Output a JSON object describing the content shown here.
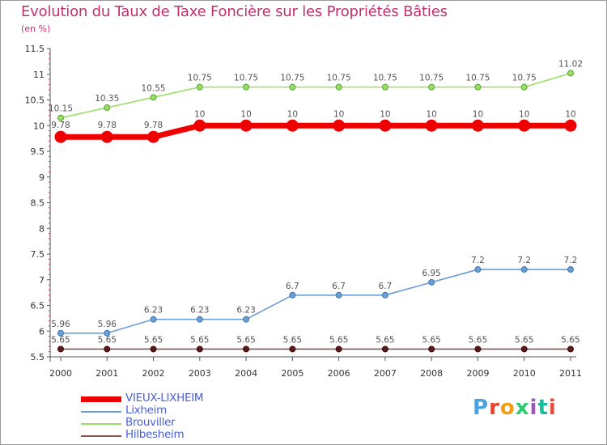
{
  "title": "Evolution du Taux de Taxe Foncière sur les Propriétés Bâties",
  "unit": "(en %)",
  "chart_data": {
    "type": "line",
    "title": "Evolution du Taux de Taxe Foncière sur les Propriétés Bâties",
    "ylabel": "(en %)",
    "xlabel": "",
    "ylim": [
      5.5,
      11.5
    ],
    "yticks": [
      5.5,
      6,
      6.5,
      7,
      7.5,
      8,
      8.5,
      9,
      9.5,
      10,
      10.5,
      11,
      11.5
    ],
    "ytick_labels": [
      "5.5",
      "6",
      "6.5",
      "7",
      "7.5",
      "8",
      "8.5",
      "9",
      "9.5",
      "10",
      "10.5",
      "11",
      "11.5"
    ],
    "x": [
      "2000",
      "2001",
      "2002",
      "2003",
      "2004",
      "2005",
      "2006",
      "2007",
      "2008",
      "2009",
      "2010",
      "2011"
    ],
    "grid": false,
    "legend_position": "bottom-left",
    "series": [
      {
        "name": "VIEUX-LIXHEIM",
        "color": "#ee0000",
        "width": "thick",
        "values": [
          9.78,
          9.78,
          9.78,
          10,
          10,
          10,
          10,
          10,
          10,
          10,
          10,
          10
        ],
        "labels": [
          "9.78",
          "9.78",
          "9.78",
          "10",
          "10",
          "10",
          "10",
          "10",
          "10",
          "10",
          "10",
          "10"
        ]
      },
      {
        "name": "Lixheim",
        "color": "#6c9fd2",
        "width": "thin",
        "values": [
          5.96,
          5.96,
          6.23,
          6.23,
          6.23,
          6.7,
          6.7,
          6.7,
          6.95,
          7.2,
          7.2,
          7.2
        ],
        "labels": [
          "5.96",
          "5.96",
          "6.23",
          "6.23",
          "6.23",
          "6.7",
          "6.7",
          "6.7",
          "6.95",
          "7.2",
          "7.2",
          "7.2"
        ]
      },
      {
        "name": "Brouviller",
        "color": "#99dd66",
        "width": "thin",
        "values": [
          10.15,
          10.35,
          10.55,
          10.75,
          10.75,
          10.75,
          10.75,
          10.75,
          10.75,
          10.75,
          10.75,
          11.02
        ],
        "labels": [
          "10.15",
          "10.35",
          "10.55",
          "10.75",
          "10.75",
          "10.75",
          "10.75",
          "10.75",
          "10.75",
          "10.75",
          "10.75",
          "11.02"
        ]
      },
      {
        "name": "Hilbesheim",
        "color": "#885555",
        "width": "thin",
        "values": [
          5.65,
          5.65,
          5.65,
          5.65,
          5.65,
          5.65,
          5.65,
          5.65,
          5.65,
          5.65,
          5.65,
          5.65
        ],
        "labels": [
          "5.65",
          "5.65",
          "5.65",
          "5.65",
          "5.65",
          "5.65",
          "5.65",
          "5.65",
          "5.65",
          "5.65",
          "5.65",
          "5.65"
        ]
      }
    ]
  },
  "logo": {
    "text": "Proxiti",
    "letter_colors": [
      "#4aa3df",
      "#e8412c",
      "#f39c12",
      "#2ecc71",
      "#9b59b6",
      "#1abc9c",
      "#e74c3c"
    ]
  }
}
